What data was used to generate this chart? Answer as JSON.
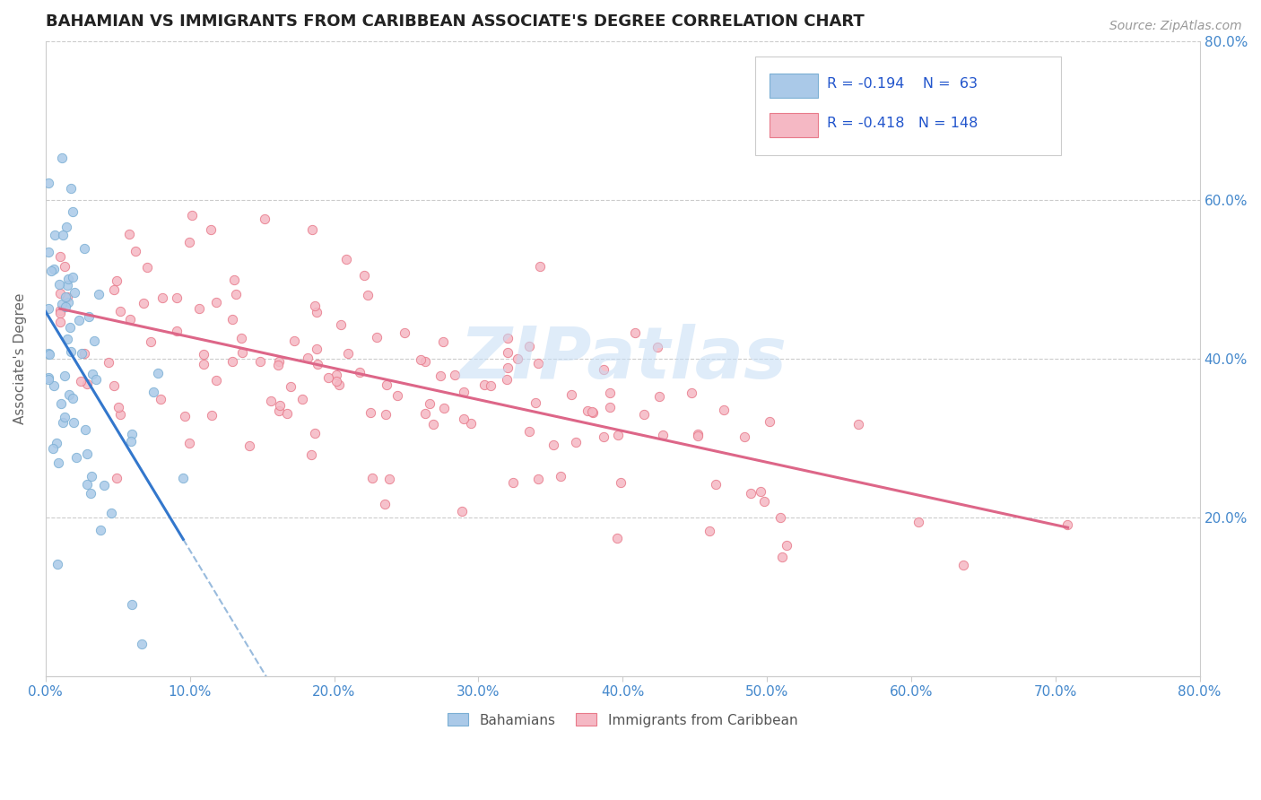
{
  "title": "BAHAMIAN VS IMMIGRANTS FROM CARIBBEAN ASSOCIATE'S DEGREE CORRELATION CHART",
  "source": "Source: ZipAtlas.com",
  "ylabel": "Associate's Degree",
  "xlim": [
    0.0,
    0.8
  ],
  "ylim": [
    0.0,
    0.8
  ],
  "series1_label": "Bahamians",
  "series1_color": "#aac9e8",
  "series1_edge": "#7bafd4",
  "series1_R": -0.194,
  "series1_N": 63,
  "series2_label": "Immigrants from Caribbean",
  "series2_color": "#f5b8c4",
  "series2_edge": "#e87a8a",
  "series2_R": -0.418,
  "series2_N": 148,
  "legend_r_color": "#2255cc",
  "watermark": "ZIPatlas",
  "trend1_color": "#3377cc",
  "trend2_color": "#dd6688",
  "dashed_color": "#99bbdd",
  "background_color": "#ffffff",
  "grid_color": "#cccccc",
  "title_color": "#222222",
  "axis_label_color": "#4488cc",
  "right_yticks": [
    0.2,
    0.4,
    0.6,
    0.8
  ],
  "right_ytick_labels": [
    "20.0%",
    "40.0%",
    "60.0%",
    "80.0%"
  ]
}
